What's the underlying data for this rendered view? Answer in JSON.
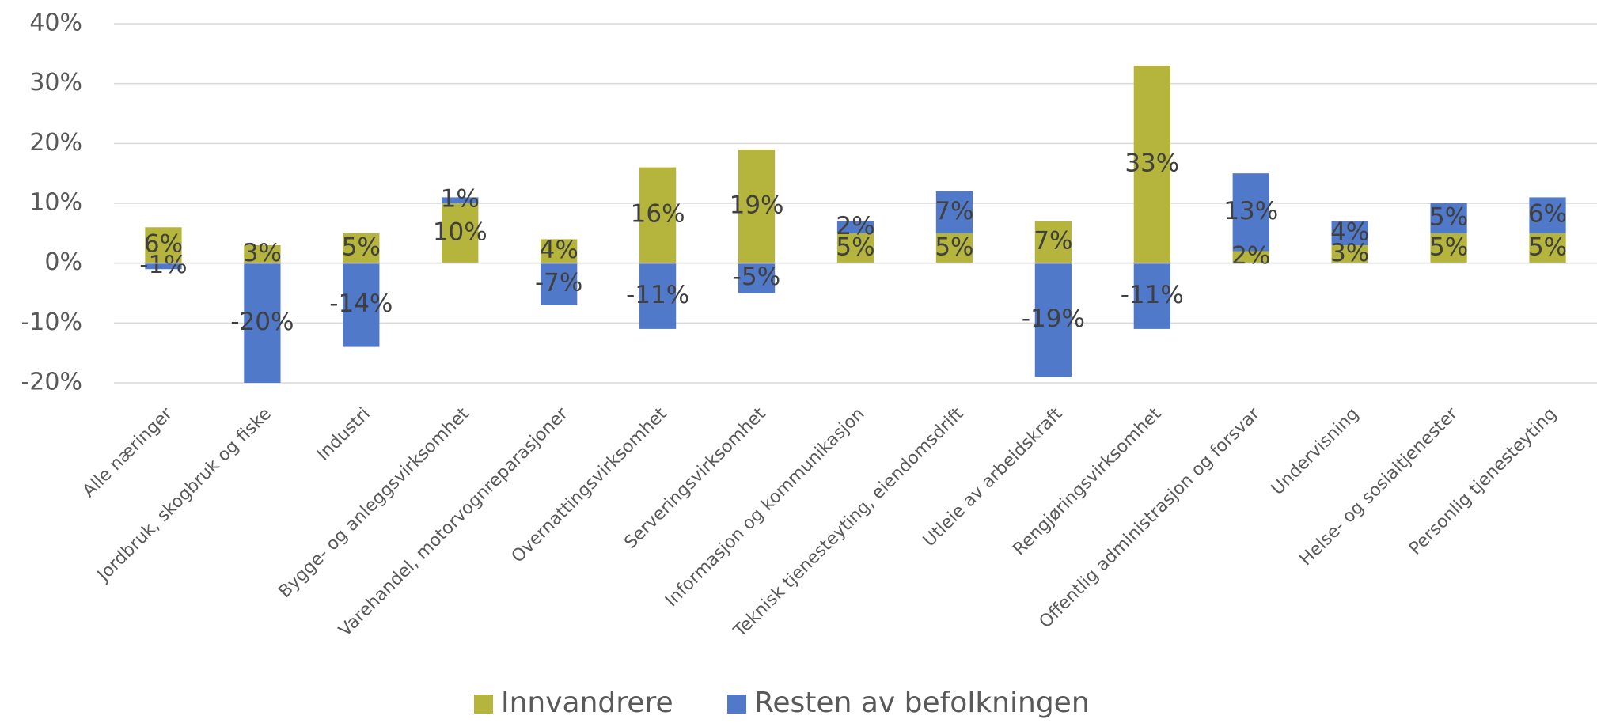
{
  "chart_data": {
    "type": "bar",
    "stacked": true,
    "categories": [
      "Alle næringer",
      "Jordbruk, skogbruk og fiske",
      "Industri",
      "Bygge- og anleggsvirksomhet",
      "Varehandel, motorvognreparasjoner",
      "Overnattingsvirksomhet",
      "Serveringsvirksomhet",
      "Informasjon og kommunikasjon",
      "Teknisk tjenesteyting, eiendomsdrift",
      "Utleie av arbeidskraft",
      "Rengjøringsvirksomhet",
      "Offentlig administrasjon og forsvar",
      "Undervisning",
      "Helse- og sosialtjenester",
      "Personlig tjenesteyting"
    ],
    "series": [
      {
        "name": "Innvandrere",
        "color": "#b5b43c",
        "values": [
          6,
          3,
          5,
          10,
          4,
          16,
          19,
          5,
          5,
          7,
          33,
          2,
          3,
          5,
          5
        ],
        "value_labels": [
          "6%",
          "3%",
          "5%",
          "10%",
          "4%",
          "16%",
          "19%",
          "5%",
          "5%",
          "7%",
          "33%",
          "2%",
          "3%",
          "5%",
          "5%"
        ]
      },
      {
        "name": "Resten av befolkningen",
        "color": "#5079c9",
        "values": [
          -1,
          -20,
          -14,
          1,
          -7,
          -11,
          -5,
          2,
          7,
          -19,
          -11,
          13,
          4,
          5,
          6
        ],
        "value_labels": [
          "-1%",
          "-20%",
          "-14%",
          "1%",
          "-7%",
          "-11%",
          "-5%",
          "2%",
          "7%",
          "-19%",
          "-11%",
          "13%",
          "4%",
          "5%",
          "6%"
        ]
      }
    ],
    "ylim": [
      -20,
      40
    ],
    "yticks": [
      {
        "value": -20,
        "label": "-20%"
      },
      {
        "value": -10,
        "label": "-10%"
      },
      {
        "value": 0,
        "label": "0%"
      },
      {
        "value": 10,
        "label": "10%"
      },
      {
        "value": 20,
        "label": "20%"
      },
      {
        "value": 30,
        "label": "30%"
      },
      {
        "value": 40,
        "label": "40%"
      }
    ],
    "grid": true,
    "legend": "bottom"
  }
}
